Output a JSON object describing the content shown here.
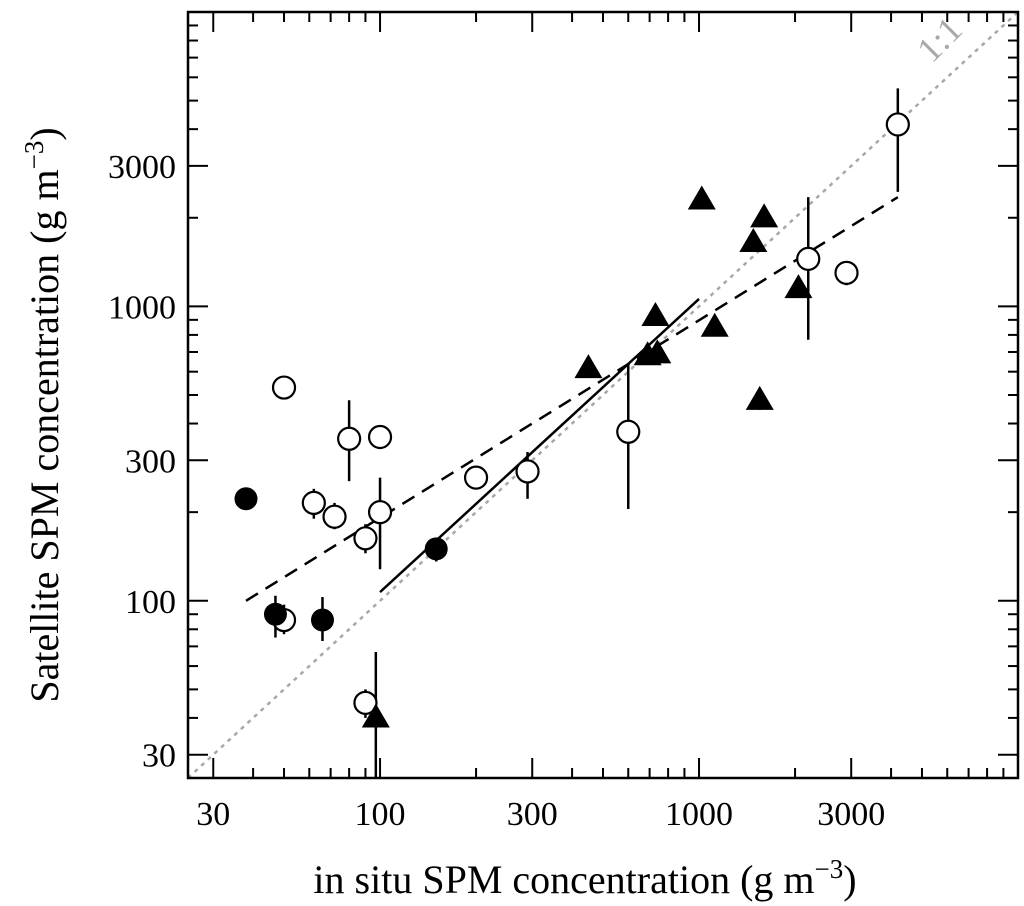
{
  "chart_data": {
    "type": "scatter",
    "xscale": "log",
    "yscale": "log",
    "xlim": [
      25,
      10000
    ],
    "ylim": [
      25,
      10000
    ],
    "x_ticks": [
      {
        "value": 30,
        "label": "30"
      },
      {
        "value": 100,
        "label": "100"
      },
      {
        "value": 300,
        "label": "300"
      },
      {
        "value": 1000,
        "label": "1000"
      },
      {
        "value": 3000,
        "label": "3000"
      }
    ],
    "y_ticks": [
      {
        "value": 30,
        "label": "30"
      },
      {
        "value": 100,
        "label": "100"
      },
      {
        "value": 300,
        "label": "300"
      },
      {
        "value": 1000,
        "label": "1000"
      },
      {
        "value": 3000,
        "label": "3000"
      }
    ],
    "xlabel": {
      "main": "in situ SPM concentration (g m",
      "sup": "−3",
      "close": ")"
    },
    "ylabel": {
      "main": "Satellite SPM concentration (g m",
      "sup": "−3",
      "close": ")"
    },
    "reference_line_label": "1:1",
    "grid": false,
    "series": [
      {
        "marker": "open-circle",
        "points": [
          {
            "x": 50,
            "y": 530
          },
          {
            "x": 80,
            "y": 355,
            "ylo": 255,
            "yhi": 480
          },
          {
            "x": 100,
            "y": 360
          },
          {
            "x": 62,
            "y": 215,
            "ylo": 190,
            "yhi": 240
          },
          {
            "x": 72,
            "y": 193,
            "ylo": 175,
            "yhi": 215
          },
          {
            "x": 100,
            "y": 200,
            "ylo": 128,
            "yhi": 262
          },
          {
            "x": 90,
            "y": 163,
            "ylo": 145,
            "yhi": 182
          },
          {
            "x": 200,
            "y": 262
          },
          {
            "x": 290,
            "y": 275,
            "ylo": 222,
            "yhi": 320
          },
          {
            "x": 600,
            "y": 375,
            "ylo": 205,
            "yhi": 640
          },
          {
            "x": 50,
            "y": 86,
            "ylo": 77,
            "yhi": 97
          },
          {
            "x": 90,
            "y": 45,
            "ylo": 40,
            "yhi": 50
          },
          {
            "x": 2200,
            "y": 1450,
            "ylo": 770,
            "yhi": 2350
          },
          {
            "x": 2900,
            "y": 1300,
            "ylo": 1180,
            "yhi": 1420
          },
          {
            "x": 4200,
            "y": 4150,
            "ylo": 2450,
            "yhi": 5500
          }
        ]
      },
      {
        "marker": "filled-circle",
        "points": [
          {
            "x": 38,
            "y": 222
          },
          {
            "x": 47,
            "y": 90,
            "ylo": 75,
            "yhi": 104
          },
          {
            "x": 66,
            "y": 86,
            "ylo": 73,
            "yhi": 103
          },
          {
            "x": 150,
            "y": 150,
            "ylo": 136,
            "yhi": 163
          }
        ]
      },
      {
        "marker": "filled-triangle",
        "points": [
          {
            "x": 450,
            "y": 615
          },
          {
            "x": 730,
            "y": 925
          },
          {
            "x": 690,
            "y": 680,
            "ylo": 640,
            "yhi": 705
          },
          {
            "x": 740,
            "y": 690
          },
          {
            "x": 1020,
            "y": 2300
          },
          {
            "x": 1120,
            "y": 850
          },
          {
            "x": 1480,
            "y": 1650
          },
          {
            "x": 1600,
            "y": 2000
          },
          {
            "x": 1550,
            "y": 480,
            "ylo": 445,
            "yhi": 505
          },
          {
            "x": 2050,
            "y": 1150
          },
          {
            "x": 97,
            "y": 40,
            "ylo": 25,
            "yhi": 67
          }
        ]
      }
    ],
    "fit_lines": [
      {
        "style": "dashed",
        "points": [
          [
            38,
            100
          ],
          [
            4200,
            2350
          ]
        ]
      },
      {
        "style": "solid",
        "points": [
          [
            100,
            107
          ],
          [
            1000,
            1060
          ]
        ]
      },
      {
        "style": "dotted-gray",
        "points": [
          [
            25,
            25
          ],
          [
            10000,
            10000
          ]
        ]
      }
    ]
  }
}
